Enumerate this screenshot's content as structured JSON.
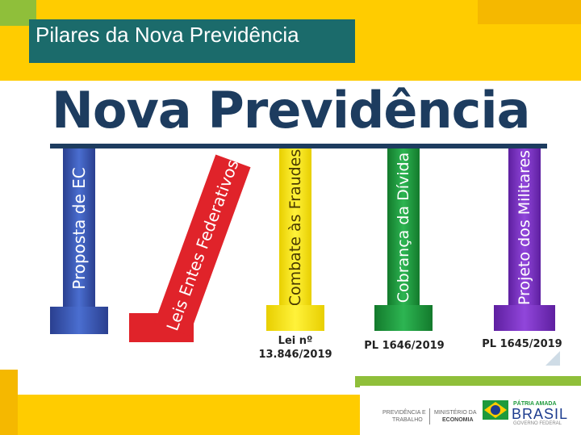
{
  "slide": {
    "title": "Pilares da Nova Previdência",
    "heading": "Nova Previdência"
  },
  "pillars": [
    {
      "label": "Proposta de EC",
      "color": "#3a5ab5",
      "caption": ""
    },
    {
      "label": "Leis Entes Federativos",
      "color": "#e0232a",
      "caption": ""
    },
    {
      "label": "Combate às Fraudes",
      "color": "#ffe600",
      "caption_line1": "Lei nº",
      "caption_line2": "13.846/2019"
    },
    {
      "label": "Cobrança da Dívida",
      "color": "#1e9a3c",
      "caption": "PL 1646/2019"
    },
    {
      "label": "Projeto dos Militares",
      "color": "#7b2fc0",
      "caption": "PL 1645/2019"
    }
  ],
  "logos": {
    "ministry_line1": "PREVIDÊNCIA E",
    "ministry_line2": "TRABALHO",
    "ministry_line3": "MINISTÉRIO DA",
    "ministry_line4": "ECONOMIA",
    "brasil_tag": "PÁTRIA AMADA",
    "brasil": "BRASIL",
    "brasil_sub": "GOVERNO FEDERAL"
  },
  "colors": {
    "frame_yellow": "#ffcc00",
    "frame_green": "#8fbf3a",
    "title_bg": "#1b6b6b",
    "heading": "#1d3c5f"
  }
}
